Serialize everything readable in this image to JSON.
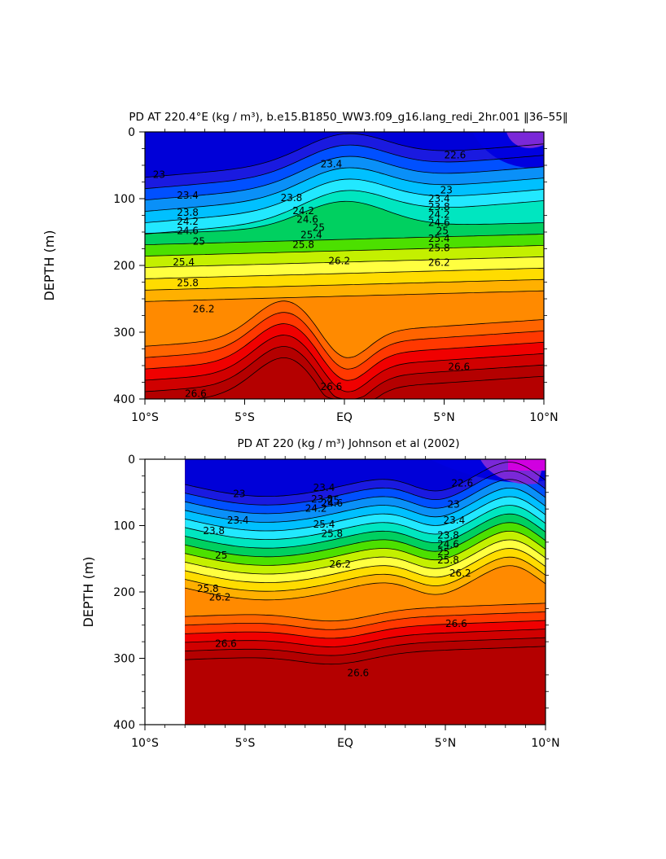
{
  "chart_data": [
    {
      "type": "heatmap",
      "title": "PD AT 220.4°E (kg / m³), b.e15.B1850_WW3.f09_g16.lang_redi_2hr.001 ‖36–55‖",
      "ylabel": "DEPTH (m)",
      "xlabel": "",
      "x_ticks": [
        "10°S",
        "5°S",
        "EQ",
        "5°N",
        "10°N"
      ],
      "y_ticks": [
        "0",
        "100",
        "200",
        "300",
        "400"
      ],
      "xlim": [
        -10,
        10
      ],
      "ylim": [
        400,
        0
      ],
      "contour_interval": 0.2,
      "contour_labels": [
        {
          "x": -9.6,
          "y": 64,
          "v": "23"
        },
        {
          "x": -8.4,
          "y": 95,
          "v": "23.4"
        },
        {
          "x": -8.4,
          "y": 121,
          "v": "23.8"
        },
        {
          "x": -8.4,
          "y": 134,
          "v": "24.2"
        },
        {
          "x": -8.4,
          "y": 148,
          "v": "24.6"
        },
        {
          "x": -7.6,
          "y": 164,
          "v": "25"
        },
        {
          "x": -8.6,
          "y": 195,
          "v": "25.4"
        },
        {
          "x": -8.4,
          "y": 226,
          "v": "25.8"
        },
        {
          "x": -7.6,
          "y": 265,
          "v": "26.2"
        },
        {
          "x": -8.0,
          "y": 392,
          "v": "26.6"
        },
        {
          "x": -1.2,
          "y": 48,
          "v": "23.4"
        },
        {
          "x": -3.2,
          "y": 99,
          "v": "23.8"
        },
        {
          "x": -2.6,
          "y": 118,
          "v": "24.2"
        },
        {
          "x": -2.4,
          "y": 131,
          "v": "24.6"
        },
        {
          "x": -1.6,
          "y": 143,
          "v": "25"
        },
        {
          "x": -2.2,
          "y": 154,
          "v": "25.4"
        },
        {
          "x": -2.6,
          "y": 169,
          "v": "25.8"
        },
        {
          "x": -0.8,
          "y": 193,
          "v": "26.2"
        },
        {
          "x": -1.2,
          "y": 382,
          "v": "26.6"
        },
        {
          "x": 5.0,
          "y": 35,
          "v": "22.6"
        },
        {
          "x": 4.8,
          "y": 87,
          "v": "23"
        },
        {
          "x": 4.2,
          "y": 100,
          "v": "23.4"
        },
        {
          "x": 4.2,
          "y": 112,
          "v": "23.8"
        },
        {
          "x": 4.2,
          "y": 124,
          "v": "24.2"
        },
        {
          "x": 4.2,
          "y": 136,
          "v": "24.6"
        },
        {
          "x": 4.6,
          "y": 148,
          "v": "25"
        },
        {
          "x": 4.2,
          "y": 160,
          "v": "25.4"
        },
        {
          "x": 4.2,
          "y": 174,
          "v": "25.8"
        },
        {
          "x": 4.2,
          "y": 196,
          "v": "26.2"
        },
        {
          "x": 5.2,
          "y": 352,
          "v": "26.6"
        }
      ]
    },
    {
      "type": "heatmap",
      "title": "PD AT 220 (kg / m³) Johnson et al (2002)",
      "ylabel": "DEPTH (m)",
      "xlabel": "",
      "x_ticks": [
        "10°S",
        "5°S",
        "EQ",
        "5°N",
        "10°N"
      ],
      "y_ticks": [
        "0",
        "100",
        "200",
        "300",
        "400"
      ],
      "xlim": [
        -10,
        10
      ],
      "ylim": [
        400,
        0
      ],
      "data_xlim": [
        -8,
        10
      ],
      "contour_interval": 0.2,
      "contour_labels": [
        {
          "x": -5.6,
          "y": 52,
          "v": "23"
        },
        {
          "x": -5.9,
          "y": 92,
          "v": "23.4"
        },
        {
          "x": -7.1,
          "y": 108,
          "v": "23.8"
        },
        {
          "x": -6.5,
          "y": 145,
          "v": "25"
        },
        {
          "x": -7.4,
          "y": 195,
          "v": "25.8"
        },
        {
          "x": -6.8,
          "y": 208,
          "v": "26.2"
        },
        {
          "x": -6.5,
          "y": 278,
          "v": "26.6"
        },
        {
          "x": -1.6,
          "y": 43,
          "v": "23.4"
        },
        {
          "x": -1.7,
          "y": 60,
          "v": "23.8"
        },
        {
          "x": -2.0,
          "y": 74,
          "v": "24.2"
        },
        {
          "x": -1.2,
          "y": 66,
          "v": "24.6"
        },
        {
          "x": -0.9,
          "y": 62,
          "v": "25"
        },
        {
          "x": -1.6,
          "y": 98,
          "v": "25.4"
        },
        {
          "x": -1.2,
          "y": 112,
          "v": "25.8"
        },
        {
          "x": -0.8,
          "y": 158,
          "v": "26.2"
        },
        {
          "x": 0.1,
          "y": 322,
          "v": "26.6"
        },
        {
          "x": 5.3,
          "y": 36,
          "v": "22.6"
        },
        {
          "x": 5.1,
          "y": 68,
          "v": "23"
        },
        {
          "x": 4.9,
          "y": 92,
          "v": "23.4"
        },
        {
          "x": 4.6,
          "y": 115,
          "v": "23.8"
        },
        {
          "x": 4.6,
          "y": 128,
          "v": "24.6"
        },
        {
          "x": 4.6,
          "y": 140,
          "v": "25"
        },
        {
          "x": 4.6,
          "y": 152,
          "v": "25.8"
        },
        {
          "x": 5.2,
          "y": 172,
          "v": "26.2"
        },
        {
          "x": 5.0,
          "y": 248,
          "v": "26.6"
        }
      ]
    }
  ],
  "colors": {
    "ramp": [
      "#0000d8",
      "#1a1ae0",
      "#0050ff",
      "#0a90f8",
      "#00c0ff",
      "#22e8ff",
      "#00e6c0",
      "#00d060",
      "#4ce000",
      "#c4f000",
      "#ffff40",
      "#ffdc00",
      "#ffb000",
      "#ff8a00",
      "#ff6400",
      "#ff3800",
      "#f00000",
      "#d00000",
      "#b40000"
    ],
    "magenta": "#d000e0",
    "purple": "#7a28d8",
    "contour_line": "#000000"
  }
}
